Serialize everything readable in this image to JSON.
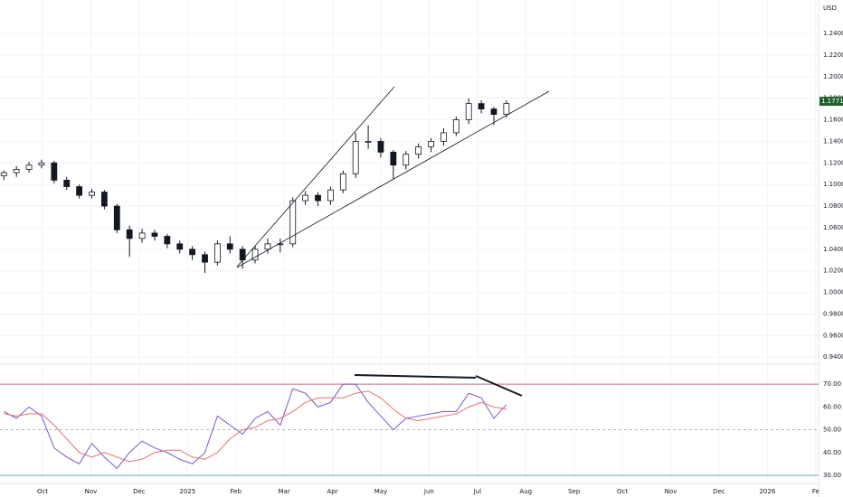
{
  "chart_data": [
    {
      "type": "candlestick",
      "currency": "USD",
      "last_price": 1.17712,
      "last_price_color": "#1e5f2a",
      "up_color": "#ffffff",
      "down_color": "#131722",
      "wick_color": "#131722",
      "grid": true,
      "x": [
        9.2,
        9.46,
        9.72,
        9.98,
        10.24,
        10.5,
        10.76,
        11.02,
        11.28,
        11.54,
        11.8,
        12.06,
        12.32,
        12.58,
        12.84,
        13.1,
        13.36,
        13.62,
        13.88,
        14.14,
        14.4,
        14.66,
        14.92,
        15.18,
        15.44,
        15.7,
        15.96,
        16.22,
        16.48,
        16.74,
        17.0,
        17.26,
        17.52,
        17.78,
        18.04,
        18.3,
        18.56,
        18.82,
        19.08,
        19.34,
        19.6
      ],
      "open": [
        1.108,
        1.111,
        1.114,
        1.118,
        1.12,
        1.104,
        1.098,
        1.09,
        1.093,
        1.08,
        1.058,
        1.05,
        1.055,
        1.052,
        1.045,
        1.04,
        1.035,
        1.028,
        1.045,
        1.04,
        1.03,
        1.04,
        1.045,
        1.045,
        1.085,
        1.09,
        1.085,
        1.095,
        1.11,
        1.14,
        1.14,
        1.13,
        1.118,
        1.128,
        1.135,
        1.14,
        1.148,
        1.16,
        1.175,
        1.17,
        1.165
      ],
      "high": [
        1.113,
        1.117,
        1.121,
        1.123,
        1.122,
        1.107,
        1.1,
        1.096,
        1.095,
        1.082,
        1.062,
        1.059,
        1.058,
        1.054,
        1.048,
        1.043,
        1.038,
        1.048,
        1.052,
        1.043,
        1.043,
        1.05,
        1.05,
        1.088,
        1.094,
        1.093,
        1.098,
        1.113,
        1.148,
        1.155,
        1.143,
        1.132,
        1.131,
        1.138,
        1.143,
        1.152,
        1.163,
        1.18,
        1.178,
        1.172,
        1.178
      ],
      "low": [
        1.104,
        1.107,
        1.111,
        1.115,
        1.101,
        1.095,
        1.087,
        1.087,
        1.077,
        1.055,
        1.033,
        1.046,
        1.048,
        1.041,
        1.036,
        1.03,
        1.018,
        1.025,
        1.036,
        1.022,
        1.027,
        1.036,
        1.037,
        1.042,
        1.081,
        1.08,
        1.081,
        1.092,
        1.106,
        1.133,
        1.125,
        1.105,
        1.114,
        1.124,
        1.13,
        1.136,
        1.145,
        1.156,
        1.166,
        1.155,
        1.162
      ],
      "close": [
        1.111,
        1.114,
        1.118,
        1.12,
        1.104,
        1.098,
        1.09,
        1.093,
        1.08,
        1.058,
        1.05,
        1.055,
        1.052,
        1.045,
        1.04,
        1.035,
        1.028,
        1.045,
        1.04,
        1.03,
        1.04,
        1.045,
        1.045,
        1.085,
        1.09,
        1.085,
        1.095,
        1.11,
        1.14,
        1.14,
        1.13,
        1.118,
        1.128,
        1.135,
        1.14,
        1.148,
        1.16,
        1.175,
        1.17,
        1.165,
        1.175
      ],
      "xlim": [
        9.12,
        26.06
      ],
      "xticks": [
        {
          "value": 10,
          "label": "Oct"
        },
        {
          "value": 11,
          "label": "Nov"
        },
        {
          "value": 12,
          "label": "Dec"
        },
        {
          "value": 13,
          "label": "2025"
        },
        {
          "value": 14,
          "label": "Feb"
        },
        {
          "value": 15,
          "label": "Mar"
        },
        {
          "value": 16,
          "label": "Apr"
        },
        {
          "value": 17,
          "label": "May"
        },
        {
          "value": 18,
          "label": "Jun"
        },
        {
          "value": 19,
          "label": "Jul"
        },
        {
          "value": 20,
          "label": "Aug"
        },
        {
          "value": 21,
          "label": "Sep"
        },
        {
          "value": 22,
          "label": "Oct"
        },
        {
          "value": 23,
          "label": "Nov"
        },
        {
          "value": 24,
          "label": "Dec"
        },
        {
          "value": 25,
          "label": "2026"
        },
        {
          "value": 26,
          "label": "Fe"
        }
      ],
      "ylim": [
        0.936,
        1.271
      ],
      "yticks": [
        {
          "value": 0.94,
          "label": "0.94000"
        },
        {
          "value": 0.96,
          "label": "0.96000"
        },
        {
          "value": 0.98,
          "label": "0.98000"
        },
        {
          "value": 1.0,
          "label": "1.00000"
        },
        {
          "value": 1.02,
          "label": "1.02000"
        },
        {
          "value": 1.04,
          "label": "1.04000"
        },
        {
          "value": 1.06,
          "label": "1.06000"
        },
        {
          "value": 1.08,
          "label": "1.08000"
        },
        {
          "value": 1.1,
          "label": "1.10000"
        },
        {
          "value": 1.12,
          "label": "1.12000"
        },
        {
          "value": 1.14,
          "label": "1.14000"
        },
        {
          "value": 1.16,
          "label": "1.16000"
        },
        {
          "value": 1.18,
          "label": "1.18000"
        },
        {
          "value": 1.2,
          "label": "1.20000"
        },
        {
          "value": 1.22,
          "label": "1.22000"
        },
        {
          "value": 1.24,
          "label": "1.24000"
        }
      ]
    },
    {
      "type": "line",
      "x": [
        9.2,
        9.46,
        9.72,
        9.98,
        10.24,
        10.5,
        10.76,
        11.02,
        11.28,
        11.54,
        11.8,
        12.06,
        12.32,
        12.58,
        12.84,
        13.1,
        13.36,
        13.62,
        13.88,
        14.14,
        14.4,
        14.66,
        14.92,
        15.18,
        15.44,
        15.7,
        15.96,
        16.22,
        16.48,
        16.74,
        17.0,
        17.26,
        17.52,
        17.78,
        18.04,
        18.3,
        18.56,
        18.82,
        19.08,
        19.34,
        19.6
      ],
      "series": [
        {
          "color": "#7e57c2",
          "values": [
            58,
            55,
            60,
            56,
            42,
            38,
            35,
            44,
            38,
            33,
            40,
            45,
            42,
            40,
            37,
            35,
            40,
            56,
            52,
            48,
            55,
            58,
            52,
            68,
            66,
            60,
            62,
            70,
            70,
            62,
            56,
            50,
            55,
            56,
            57,
            58,
            58,
            66,
            64,
            55,
            61
          ]
        },
        {
          "color": "#e57373",
          "values": [
            57,
            56,
            57,
            57,
            52,
            46,
            40,
            38,
            40,
            38,
            36,
            37,
            40,
            41,
            41,
            38,
            37,
            40,
            46,
            50,
            51,
            54,
            55,
            58,
            62,
            64,
            64,
            64,
            66,
            67,
            64,
            59,
            55,
            54,
            55,
            56,
            57,
            60,
            62,
            60,
            59
          ]
        }
      ],
      "upper_band": 70,
      "upper_color": "#c2707a",
      "lower_band": 30,
      "lower_color": "#6aa3b8",
      "middle": 50,
      "middle_color": "#b2b5be",
      "xlim": [
        9.12,
        26.06
      ],
      "ylim": [
        28,
        78
      ],
      "yticks": [
        {
          "value": 30,
          "label": "30.00"
        },
        {
          "value": 40,
          "label": "40.00"
        },
        {
          "value": 50,
          "label": "50.00"
        },
        {
          "value": 60,
          "label": "60.00"
        },
        {
          "value": 70,
          "label": "70.00"
        }
      ]
    }
  ]
}
